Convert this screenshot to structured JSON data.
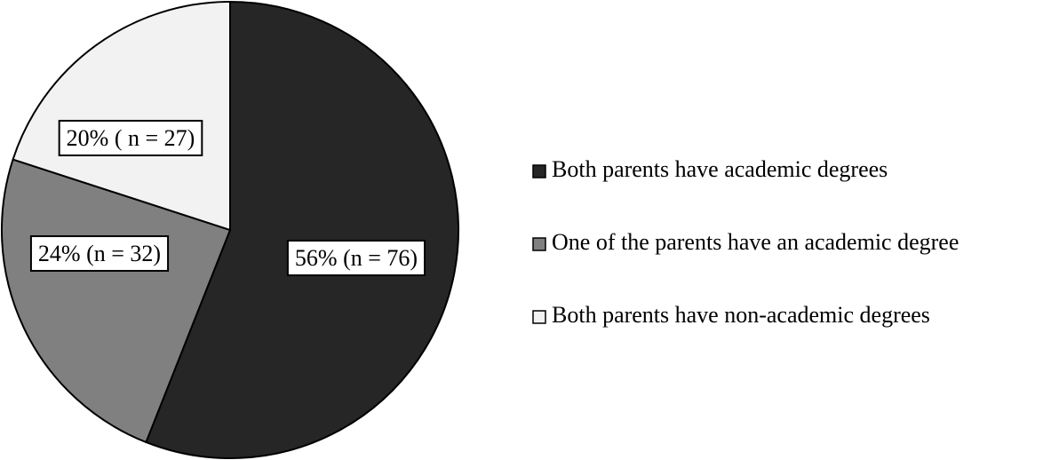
{
  "chart_data": {
    "type": "pie",
    "categories": [
      "Both parents have academic degrees",
      "One of the parents have an academic degree",
      "Both parents have non-academic degrees"
    ],
    "values": [
      56,
      24,
      20
    ],
    "value_labels": [
      "56% (n = 76)",
      "24% (n = 32)",
      "20% ( n = 27)"
    ],
    "colors": [
      "#262626",
      "#808080",
      "#f2f2f2"
    ],
    "legend": "right"
  }
}
